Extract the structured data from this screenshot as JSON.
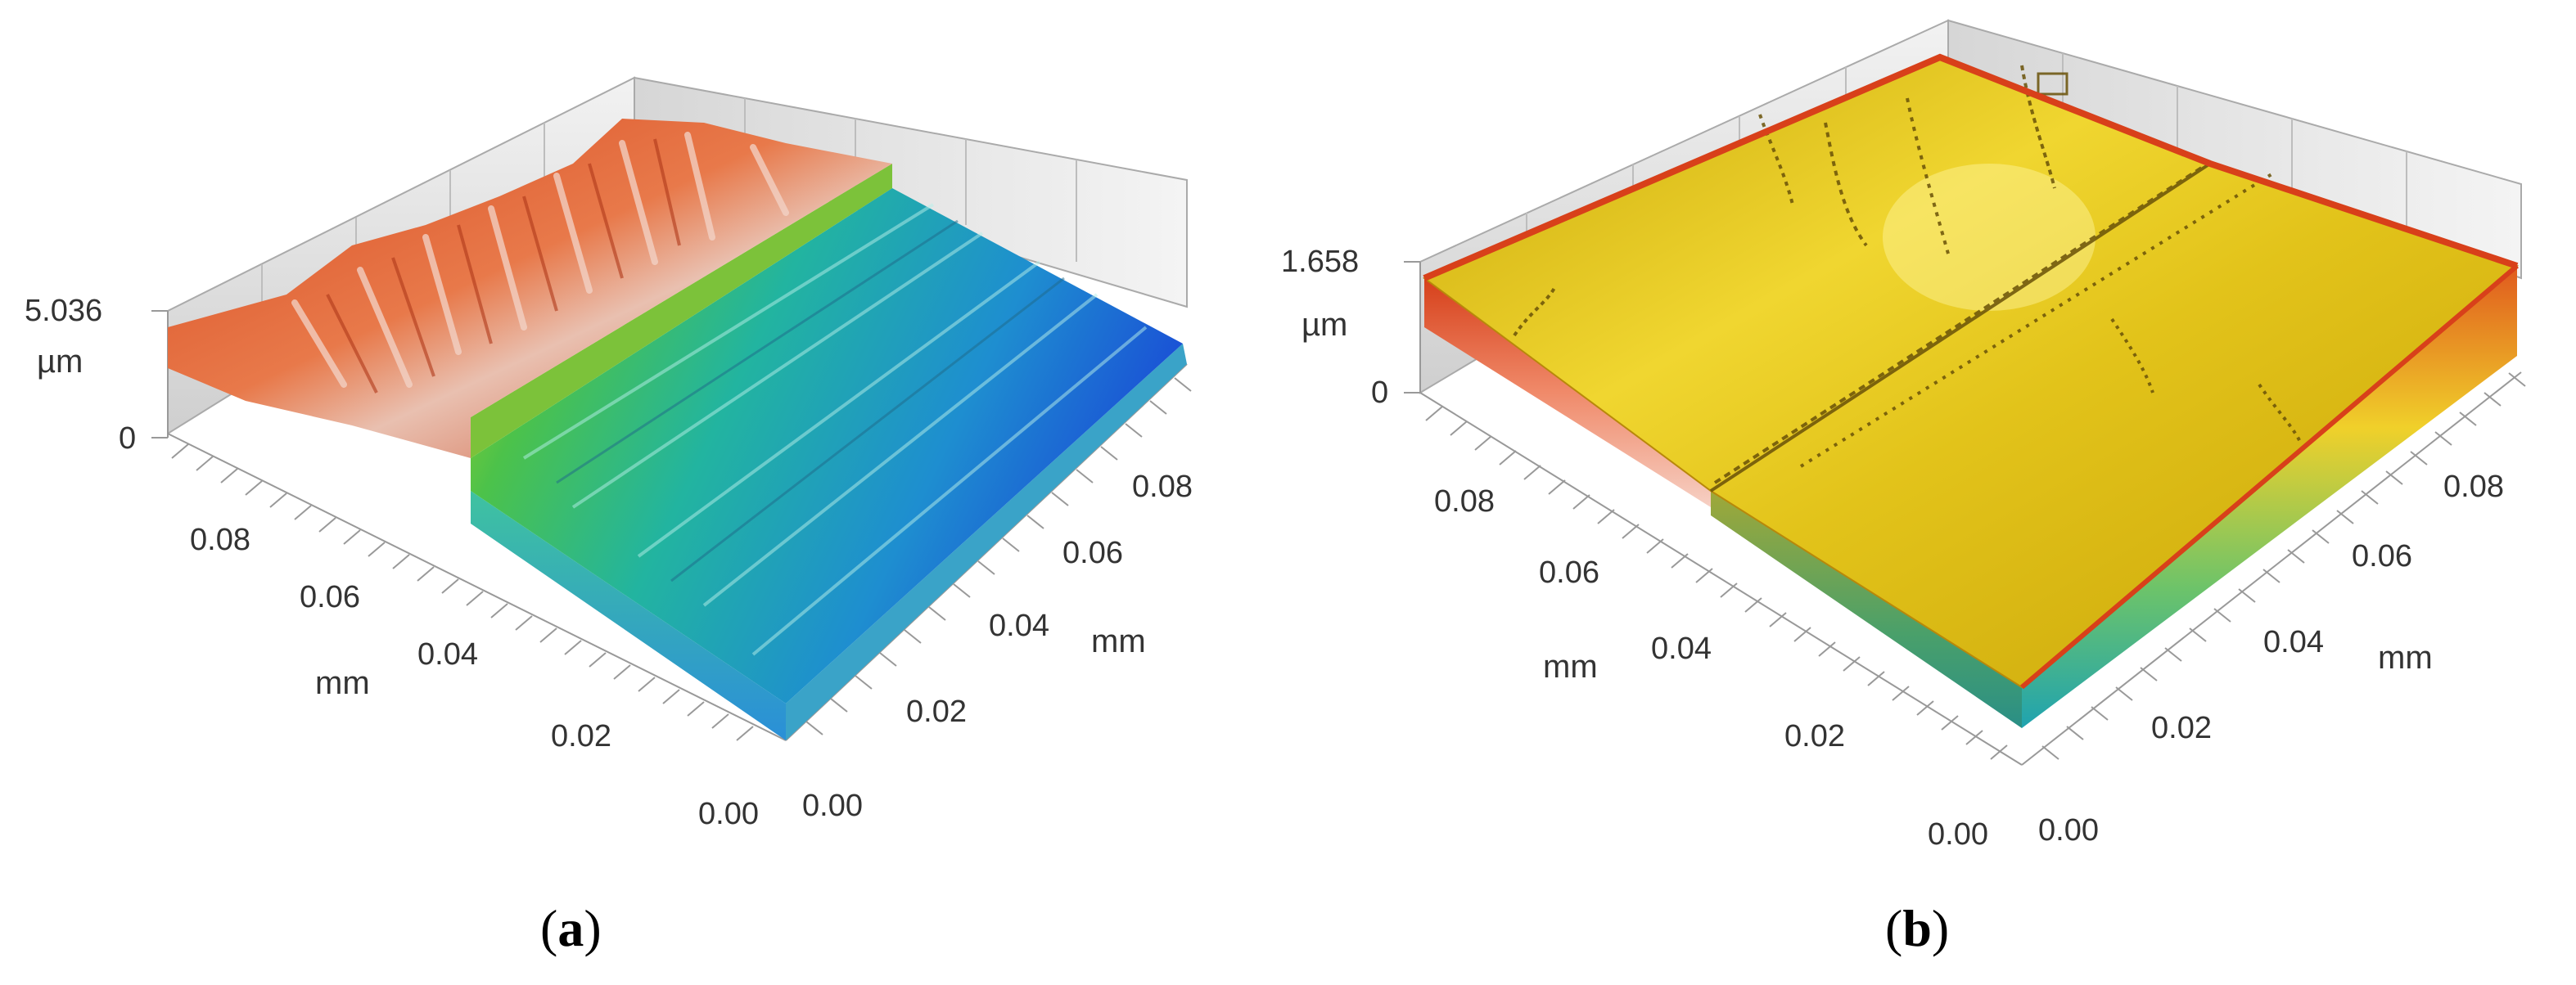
{
  "panels": [
    {
      "id": "a",
      "caption_open": "(",
      "caption_letter": "a",
      "caption_close": ")",
      "z_max_label": "5.036",
      "z_unit": "µm",
      "z_min_label": "0",
      "left_axis_ticks": [
        "0.08",
        "0.06",
        "0.04",
        "0.02",
        "0.00"
      ],
      "left_axis_unit": "mm",
      "right_axis_ticks": [
        "0.00",
        "0.02",
        "0.04",
        "0.06",
        "0.08"
      ],
      "right_axis_unit": "mm",
      "colormap": "jet (blue low → red high)"
    },
    {
      "id": "b",
      "caption_open": "(",
      "caption_letter": "b",
      "caption_close": ")",
      "z_max_label": "1.658",
      "z_unit": "µm",
      "z_min_label": "0",
      "left_axis_ticks": [
        "0.08",
        "0.06",
        "0.04",
        "0.02",
        "0.00"
      ],
      "left_axis_unit": "mm",
      "right_axis_ticks": [
        "0.00",
        "0.02",
        "0.04",
        "0.06",
        "0.08"
      ],
      "right_axis_unit": "mm",
      "colormap": "yellow surface with orange/green edges"
    }
  ],
  "colors": {
    "wall": "#e2e2e2",
    "wall_dark": "#c8c8c8",
    "surface_a_high": "#d8552a",
    "surface_a_mid": "#2fb8a8",
    "surface_a_low": "#1f6ed8",
    "surface_b": "#d9b20a",
    "edge_b_red": "#d84a1e",
    "edge_b_green": "#3fb36e"
  }
}
